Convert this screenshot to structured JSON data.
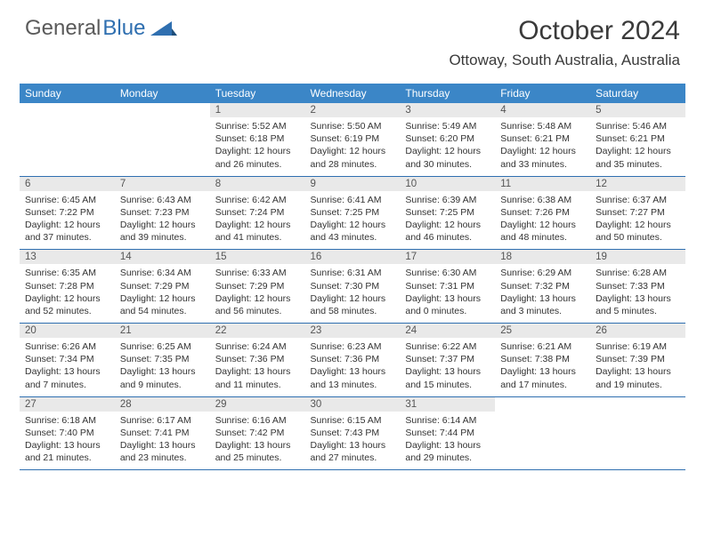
{
  "logo": {
    "part1": "General",
    "part2": "Blue"
  },
  "title": "October 2024",
  "location": "Ottoway, South Australia, Australia",
  "colors": {
    "header_bg": "#3b86c7",
    "header_fg": "#ffffff",
    "daynum_bg": "#e9e9e9",
    "border": "#2f6fb0",
    "logo_gray": "#5a5a5a",
    "logo_blue": "#2f6fb0",
    "text": "#333333",
    "background": "#ffffff"
  },
  "day_names": [
    "Sunday",
    "Monday",
    "Tuesday",
    "Wednesday",
    "Thursday",
    "Friday",
    "Saturday"
  ],
  "weeks": [
    [
      {
        "n": "",
        "lines": []
      },
      {
        "n": "",
        "lines": []
      },
      {
        "n": "1",
        "lines": [
          "Sunrise: 5:52 AM",
          "Sunset: 6:18 PM",
          "Daylight: 12 hours",
          "and 26 minutes."
        ]
      },
      {
        "n": "2",
        "lines": [
          "Sunrise: 5:50 AM",
          "Sunset: 6:19 PM",
          "Daylight: 12 hours",
          "and 28 minutes."
        ]
      },
      {
        "n": "3",
        "lines": [
          "Sunrise: 5:49 AM",
          "Sunset: 6:20 PM",
          "Daylight: 12 hours",
          "and 30 minutes."
        ]
      },
      {
        "n": "4",
        "lines": [
          "Sunrise: 5:48 AM",
          "Sunset: 6:21 PM",
          "Daylight: 12 hours",
          "and 33 minutes."
        ]
      },
      {
        "n": "5",
        "lines": [
          "Sunrise: 5:46 AM",
          "Sunset: 6:21 PM",
          "Daylight: 12 hours",
          "and 35 minutes."
        ]
      }
    ],
    [
      {
        "n": "6",
        "lines": [
          "Sunrise: 6:45 AM",
          "Sunset: 7:22 PM",
          "Daylight: 12 hours",
          "and 37 minutes."
        ]
      },
      {
        "n": "7",
        "lines": [
          "Sunrise: 6:43 AM",
          "Sunset: 7:23 PM",
          "Daylight: 12 hours",
          "and 39 minutes."
        ]
      },
      {
        "n": "8",
        "lines": [
          "Sunrise: 6:42 AM",
          "Sunset: 7:24 PM",
          "Daylight: 12 hours",
          "and 41 minutes."
        ]
      },
      {
        "n": "9",
        "lines": [
          "Sunrise: 6:41 AM",
          "Sunset: 7:25 PM",
          "Daylight: 12 hours",
          "and 43 minutes."
        ]
      },
      {
        "n": "10",
        "lines": [
          "Sunrise: 6:39 AM",
          "Sunset: 7:25 PM",
          "Daylight: 12 hours",
          "and 46 minutes."
        ]
      },
      {
        "n": "11",
        "lines": [
          "Sunrise: 6:38 AM",
          "Sunset: 7:26 PM",
          "Daylight: 12 hours",
          "and 48 minutes."
        ]
      },
      {
        "n": "12",
        "lines": [
          "Sunrise: 6:37 AM",
          "Sunset: 7:27 PM",
          "Daylight: 12 hours",
          "and 50 minutes."
        ]
      }
    ],
    [
      {
        "n": "13",
        "lines": [
          "Sunrise: 6:35 AM",
          "Sunset: 7:28 PM",
          "Daylight: 12 hours",
          "and 52 minutes."
        ]
      },
      {
        "n": "14",
        "lines": [
          "Sunrise: 6:34 AM",
          "Sunset: 7:29 PM",
          "Daylight: 12 hours",
          "and 54 minutes."
        ]
      },
      {
        "n": "15",
        "lines": [
          "Sunrise: 6:33 AM",
          "Sunset: 7:29 PM",
          "Daylight: 12 hours",
          "and 56 minutes."
        ]
      },
      {
        "n": "16",
        "lines": [
          "Sunrise: 6:31 AM",
          "Sunset: 7:30 PM",
          "Daylight: 12 hours",
          "and 58 minutes."
        ]
      },
      {
        "n": "17",
        "lines": [
          "Sunrise: 6:30 AM",
          "Sunset: 7:31 PM",
          "Daylight: 13 hours",
          "and 0 minutes."
        ]
      },
      {
        "n": "18",
        "lines": [
          "Sunrise: 6:29 AM",
          "Sunset: 7:32 PM",
          "Daylight: 13 hours",
          "and 3 minutes."
        ]
      },
      {
        "n": "19",
        "lines": [
          "Sunrise: 6:28 AM",
          "Sunset: 7:33 PM",
          "Daylight: 13 hours",
          "and 5 minutes."
        ]
      }
    ],
    [
      {
        "n": "20",
        "lines": [
          "Sunrise: 6:26 AM",
          "Sunset: 7:34 PM",
          "Daylight: 13 hours",
          "and 7 minutes."
        ]
      },
      {
        "n": "21",
        "lines": [
          "Sunrise: 6:25 AM",
          "Sunset: 7:35 PM",
          "Daylight: 13 hours",
          "and 9 minutes."
        ]
      },
      {
        "n": "22",
        "lines": [
          "Sunrise: 6:24 AM",
          "Sunset: 7:36 PM",
          "Daylight: 13 hours",
          "and 11 minutes."
        ]
      },
      {
        "n": "23",
        "lines": [
          "Sunrise: 6:23 AM",
          "Sunset: 7:36 PM",
          "Daylight: 13 hours",
          "and 13 minutes."
        ]
      },
      {
        "n": "24",
        "lines": [
          "Sunrise: 6:22 AM",
          "Sunset: 7:37 PM",
          "Daylight: 13 hours",
          "and 15 minutes."
        ]
      },
      {
        "n": "25",
        "lines": [
          "Sunrise: 6:21 AM",
          "Sunset: 7:38 PM",
          "Daylight: 13 hours",
          "and 17 minutes."
        ]
      },
      {
        "n": "26",
        "lines": [
          "Sunrise: 6:19 AM",
          "Sunset: 7:39 PM",
          "Daylight: 13 hours",
          "and 19 minutes."
        ]
      }
    ],
    [
      {
        "n": "27",
        "lines": [
          "Sunrise: 6:18 AM",
          "Sunset: 7:40 PM",
          "Daylight: 13 hours",
          "and 21 minutes."
        ]
      },
      {
        "n": "28",
        "lines": [
          "Sunrise: 6:17 AM",
          "Sunset: 7:41 PM",
          "Daylight: 13 hours",
          "and 23 minutes."
        ]
      },
      {
        "n": "29",
        "lines": [
          "Sunrise: 6:16 AM",
          "Sunset: 7:42 PM",
          "Daylight: 13 hours",
          "and 25 minutes."
        ]
      },
      {
        "n": "30",
        "lines": [
          "Sunrise: 6:15 AM",
          "Sunset: 7:43 PM",
          "Daylight: 13 hours",
          "and 27 minutes."
        ]
      },
      {
        "n": "31",
        "lines": [
          "Sunrise: 6:14 AM",
          "Sunset: 7:44 PM",
          "Daylight: 13 hours",
          "and 29 minutes."
        ]
      },
      {
        "n": "",
        "lines": []
      },
      {
        "n": "",
        "lines": []
      }
    ]
  ]
}
